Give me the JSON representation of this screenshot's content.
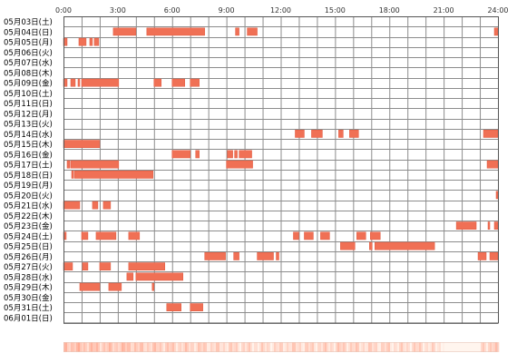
{
  "chart_data": {
    "type": "timeline",
    "title": "",
    "x_ticks": [
      "0:00",
      "3:00",
      "6:00",
      "9:00",
      "12:00",
      "15:00",
      "18:00",
      "21:00",
      "24:00"
    ],
    "x_range_hours": [
      0,
      24
    ],
    "grid": true,
    "rows": [
      {
        "date": "05月03日(土)",
        "segments": []
      },
      {
        "date": "05月04日(日)",
        "segments": [
          [
            2.75,
            4.0
          ],
          [
            4.6,
            7.8
          ],
          [
            9.5,
            9.7
          ],
          [
            10.15,
            10.7
          ],
          [
            23.8,
            24.0
          ]
        ]
      },
      {
        "date": "05月05日(月)",
        "segments": [
          [
            0.0,
            0.2
          ],
          [
            0.85,
            1.25
          ],
          [
            1.45,
            1.6
          ],
          [
            1.7,
            1.95
          ]
        ]
      },
      {
        "date": "05月06日(火)",
        "segments": []
      },
      {
        "date": "05月07日(水)",
        "segments": []
      },
      {
        "date": "05月08日(木)",
        "segments": []
      },
      {
        "date": "05月09日(金)",
        "segments": [
          [
            0.0,
            0.2
          ],
          [
            0.4,
            0.65
          ],
          [
            0.8,
            0.9
          ],
          [
            1.0,
            3.05
          ],
          [
            5.0,
            5.4
          ],
          [
            6.0,
            6.7
          ],
          [
            7.0,
            7.5
          ]
        ]
      },
      {
        "date": "05月10日(土)",
        "segments": []
      },
      {
        "date": "05月11日(日)",
        "segments": []
      },
      {
        "date": "05月12日(月)",
        "segments": []
      },
      {
        "date": "05月13日(火)",
        "segments": []
      },
      {
        "date": "05月14日(水)",
        "segments": [
          [
            12.8,
            13.3
          ],
          [
            13.7,
            14.3
          ],
          [
            15.2,
            15.45
          ],
          [
            15.8,
            16.3
          ],
          [
            23.2,
            24.0
          ]
        ]
      },
      {
        "date": "05月15日(木)",
        "segments": [
          [
            0.0,
            2.0
          ]
        ]
      },
      {
        "date": "05月16日(金)",
        "segments": [
          [
            6.0,
            7.0
          ],
          [
            7.3,
            7.5
          ],
          [
            9.05,
            9.35
          ],
          [
            9.45,
            9.6
          ],
          [
            9.7,
            10.4
          ]
        ]
      },
      {
        "date": "05月17日(土)",
        "segments": [
          [
            0.2,
            0.35
          ],
          [
            0.4,
            3.05
          ],
          [
            9.0,
            10.45
          ],
          [
            23.4,
            24.0
          ]
        ]
      },
      {
        "date": "05月18日(日)",
        "segments": [
          [
            0.45,
            0.55
          ],
          [
            0.6,
            4.95
          ]
        ]
      },
      {
        "date": "05月19日(月)",
        "segments": []
      },
      {
        "date": "05月20日(火)",
        "segments": [
          [
            23.9,
            24.0
          ]
        ]
      },
      {
        "date": "05月21日(水)",
        "segments": [
          [
            0.0,
            0.9
          ],
          [
            1.6,
            1.9
          ],
          [
            2.2,
            2.6
          ]
        ]
      },
      {
        "date": "05月22日(木)",
        "segments": []
      },
      {
        "date": "05月23日(金)",
        "segments": [
          [
            21.7,
            22.8
          ],
          [
            23.45,
            23.55
          ],
          [
            23.8,
            24.0
          ]
        ]
      },
      {
        "date": "05月24日(土)",
        "segments": [
          [
            0.0,
            0.15
          ],
          [
            1.0,
            1.35
          ],
          [
            1.8,
            2.9
          ],
          [
            3.6,
            4.2
          ],
          [
            12.7,
            13.0
          ],
          [
            13.3,
            13.8
          ],
          [
            14.2,
            14.7
          ],
          [
            16.2,
            16.7
          ],
          [
            16.95,
            17.5
          ]
        ]
      },
      {
        "date": "05月25日(日)",
        "segments": [
          [
            15.3,
            16.1
          ],
          [
            16.9,
            17.05
          ],
          [
            17.2,
            20.5
          ]
        ]
      },
      {
        "date": "05月26日(月)",
        "segments": [
          [
            7.8,
            8.95
          ],
          [
            9.4,
            9.7
          ],
          [
            10.7,
            11.6
          ],
          [
            11.75,
            11.9
          ],
          [
            22.9,
            23.35
          ],
          [
            23.55,
            24.0
          ]
        ]
      },
      {
        "date": "05月27日(火)",
        "segments": [
          [
            0.0,
            0.5
          ],
          [
            1.05,
            1.35
          ],
          [
            2.0,
            2.6
          ],
          [
            3.6,
            5.6
          ]
        ]
      },
      {
        "date": "05月28日(水)",
        "segments": [
          [
            3.5,
            3.85
          ],
          [
            4.0,
            6.6
          ]
        ]
      },
      {
        "date": "05月29日(木)",
        "segments": [
          [
            0.9,
            2.0
          ],
          [
            2.5,
            3.2
          ],
          [
            4.9,
            5.0
          ]
        ]
      },
      {
        "date": "05月30日(金)",
        "segments": []
      },
      {
        "date": "05月31日(土)",
        "segments": [
          [
            5.7,
            6.5
          ],
          [
            7.0,
            7.7
          ]
        ]
      },
      {
        "date": "06月01日(日)",
        "segments": []
      }
    ],
    "colors": {
      "bar": "#f07055",
      "bar_stroke": "#e05a40",
      "grid": "#8c8c8c",
      "frame": "#555555",
      "heat_base": "#fde3d8",
      "heat_mid": "#f8b59e",
      "heat_light": "#fff1ea"
    },
    "summary_strip": {
      "hour_intensity": [
        0.55,
        0.5,
        0.45,
        0.5,
        0.4,
        0.4,
        0.35,
        0.35,
        0.3,
        0.3,
        0.25,
        0.25,
        0.3,
        0.3,
        0.3,
        0.35,
        0.3,
        0.3,
        0.25,
        0.3,
        0.2,
        0.0,
        0.0,
        0.35
      ]
    }
  }
}
